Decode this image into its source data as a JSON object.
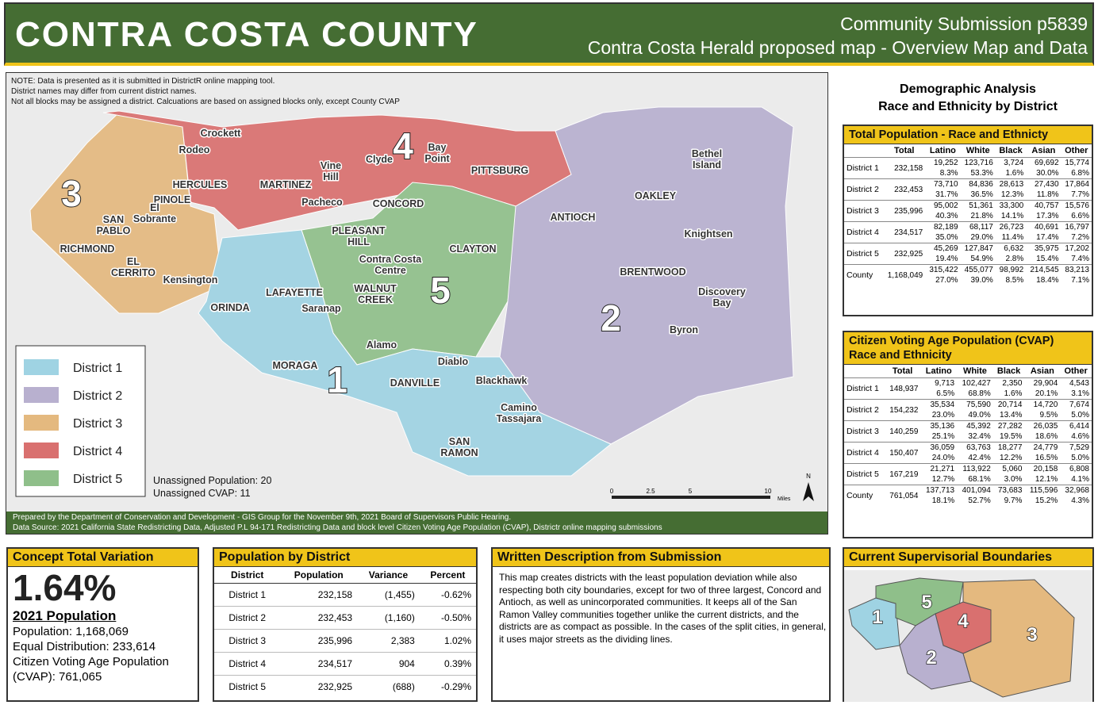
{
  "header": {
    "title": "CONTRA COSTA COUNTY",
    "subtitle_lines": [
      "Community Submission p5839",
      "Contra Costa Herald proposed map  - Overview Map and Data"
    ]
  },
  "map": {
    "note_lines": [
      "NOTE: Data is presented as it is submitted in DistrictR online mapping tool.",
      "District names may differ from current district names.",
      "Not all blocks may be assigned a district. Calcuations are based on assigned blocks only, except County CVAP"
    ],
    "places": [
      [
        "Crockett"
      ],
      [
        "Rodeo"
      ],
      [
        "Vine",
        "Hill"
      ],
      [
        "Clyde"
      ],
      [
        "Bay",
        "Point"
      ],
      [
        "PITTSBURG"
      ],
      [
        "HERCULES"
      ],
      [
        "MARTINEZ"
      ],
      [
        "Pacheco"
      ],
      [
        "CONCORD"
      ],
      [
        "PINOLE"
      ],
      [
        "El",
        "Sobrante"
      ],
      [
        "SAN",
        "PABLO"
      ],
      [
        "RICHMOND"
      ],
      [
        "EL",
        "CERRITO"
      ],
      [
        "Kensington"
      ],
      [
        "PLEASANT",
        "HILL"
      ],
      [
        "Contra Costa",
        "Centre"
      ],
      [
        "CLAYTON"
      ],
      [
        "WALNUT",
        "CREEK"
      ],
      [
        "LAFAYETTE"
      ],
      [
        "ORINDA"
      ],
      [
        "Saranap"
      ],
      [
        "Alamo"
      ],
      [
        "MORAGA"
      ],
      [
        "Diablo"
      ],
      [
        "DANVILLE"
      ],
      [
        "Blackhawk"
      ],
      [
        "Camino",
        "Tassajara"
      ],
      [
        "SAN",
        "RAMON"
      ],
      [
        "ANTIOCH"
      ],
      [
        "OAKLEY"
      ],
      [
        "Bethel",
        "Island"
      ],
      [
        "Knightsen"
      ],
      [
        "BRENTWOOD"
      ],
      [
        "Discovery",
        "Bay"
      ],
      [
        "Byron"
      ]
    ],
    "district_labels": [
      "4",
      "3",
      "5",
      "2",
      "1"
    ],
    "legend": [
      "District 1",
      "District 2",
      "District 3",
      "District 4",
      "District 5"
    ],
    "unassigned": [
      "Unassigned Population: 20",
      "Unassigned CVAP: 11"
    ],
    "scale": {
      "ticks": [
        "0",
        "2.5",
        "5",
        "10"
      ],
      "unit": "Miles"
    },
    "north": "N",
    "footer_lines": [
      "Prepared by the Department of Conservation and Development - GIS Group for the November 9th, 2021 Board of Supervisors Public Hearing.",
      "Data Source: 2021 California State Redistricting Data, Adjusted P.L 94-171 Redistricting Data and block level Citizen Voting Age Population (CVAP), Districtr online mapping submissions"
    ]
  },
  "demographics": {
    "title_lines": [
      "Demographic Analysis",
      "Race and Ethnicity by District"
    ],
    "total_population": {
      "title_lines": [
        "Total Population - Race and Ethnicty"
      ],
      "columns": [
        "Total",
        "Latino",
        "White",
        "Black",
        "Asian",
        "Other"
      ],
      "rows": [
        {
          "label": "District 1",
          "total": "232,158",
          "counts": [
            "19,252",
            "123,716",
            "3,724",
            "69,692",
            "15,774"
          ],
          "percents": [
            "8.3%",
            "53.3%",
            "1.6%",
            "30.0%",
            "6.8%"
          ]
        },
        {
          "label": "District 2",
          "total": "232,453",
          "counts": [
            "73,710",
            "84,836",
            "28,613",
            "27,430",
            "17,864"
          ],
          "percents": [
            "31.7%",
            "36.5%",
            "12.3%",
            "11.8%",
            "7.7%"
          ]
        },
        {
          "label": "District 3",
          "total": "235,996",
          "counts": [
            "95,002",
            "51,361",
            "33,300",
            "40,757",
            "15,576"
          ],
          "percents": [
            "40.3%",
            "21.8%",
            "14.1%",
            "17.3%",
            "6.6%"
          ]
        },
        {
          "label": "District 4",
          "total": "234,517",
          "counts": [
            "82,189",
            "68,117",
            "26,723",
            "40,691",
            "16,797"
          ],
          "percents": [
            "35.0%",
            "29.0%",
            "11.4%",
            "17.4%",
            "7.2%"
          ]
        },
        {
          "label": "District 5",
          "total": "232,925",
          "counts": [
            "45,269",
            "127,847",
            "6,632",
            "35,975",
            "17,202"
          ],
          "percents": [
            "19.4%",
            "54.9%",
            "2.8%",
            "15.4%",
            "7.4%"
          ]
        },
        {
          "label": "County",
          "total": "1,168,049",
          "counts": [
            "315,422",
            "455,077",
            "98,992",
            "214,545",
            "83,213"
          ],
          "percents": [
            "27.0%",
            "39.0%",
            "8.5%",
            "18.4%",
            "7.1%"
          ]
        }
      ]
    },
    "cvap": {
      "title_lines": [
        "Citizen Voting Age Population (CVAP)",
        "Race and Ethnicity"
      ],
      "columns": [
        "Total",
        "Latino",
        "White",
        "Black",
        "Asian",
        "Other"
      ],
      "rows": [
        {
          "label": "District 1",
          "total": "148,937",
          "counts": [
            "9,713",
            "102,427",
            "2,350",
            "29,904",
            "4,543"
          ],
          "percents": [
            "6.5%",
            "68.8%",
            "1.6%",
            "20.1%",
            "3.1%"
          ]
        },
        {
          "label": "District 2",
          "total": "154,232",
          "counts": [
            "35,534",
            "75,590",
            "20,714",
            "14,720",
            "7,674"
          ],
          "percents": [
            "23.0%",
            "49.0%",
            "13.4%",
            "9.5%",
            "5.0%"
          ]
        },
        {
          "label": "District 3",
          "total": "140,259",
          "counts": [
            "35,136",
            "45,392",
            "27,282",
            "26,035",
            "6,414"
          ],
          "percents": [
            "25.1%",
            "32.4%",
            "19.5%",
            "18.6%",
            "4.6%"
          ]
        },
        {
          "label": "District 4",
          "total": "150,407",
          "counts": [
            "36,059",
            "63,763",
            "18,277",
            "24,779",
            "7,529"
          ],
          "percents": [
            "24.0%",
            "42.4%",
            "12.2%",
            "16.5%",
            "5.0%"
          ]
        },
        {
          "label": "District 5",
          "total": "167,219",
          "counts": [
            "21,271",
            "113,922",
            "5,060",
            "20,158",
            "6,808"
          ],
          "percents": [
            "12.7%",
            "68.1%",
            "3.0%",
            "12.1%",
            "4.1%"
          ]
        },
        {
          "label": "County",
          "total": "761,054",
          "counts": [
            "137,713",
            "401,094",
            "73,683",
            "115,596",
            "32,968"
          ],
          "percents": [
            "18.1%",
            "52.7%",
            "9.7%",
            "15.2%",
            "4.3%"
          ]
        }
      ]
    }
  },
  "concept_variation": {
    "title": "Concept Total Variation",
    "value": "1.64%",
    "subtitle": "2021 Population",
    "lines": [
      "Population: 1,168,069",
      "Equal Distribution: 233,614",
      "Citizen Voting Age Population",
      "(CVAP): 761,065"
    ]
  },
  "population_by_district": {
    "title": "Population by District",
    "columns": [
      "District",
      "Population",
      "Variance",
      "Percent"
    ],
    "rows": [
      [
        "District 1",
        "232,158",
        "(1,455)",
        "-0.62%"
      ],
      [
        "District 2",
        "232,453",
        "(1,160)",
        "-0.50%"
      ],
      [
        "District 3",
        "235,996",
        "2,383",
        "1.02%"
      ],
      [
        "District 4",
        "234,517",
        "904",
        "0.39%"
      ],
      [
        "District 5",
        "232,925",
        "(688)",
        "-0.29%"
      ]
    ]
  },
  "written_description": {
    "title": "Written Description from Submission",
    "text": "This map creates districts with the least population deviation while also respecting both city boundaries, except for two of three largest, Concord and Antioch, as well as unincorporated communities. It keeps all of the San Ramon Valley communities together unlike the current districts, and the districts are as compact as possible. In the cases of the split cities, in general, it uses major streets as the dividing lines."
  },
  "current_boundaries": {
    "title": "Current Supervisorial Boundaries",
    "labels": [
      "1",
      "5",
      "4",
      "2",
      "3"
    ]
  }
}
